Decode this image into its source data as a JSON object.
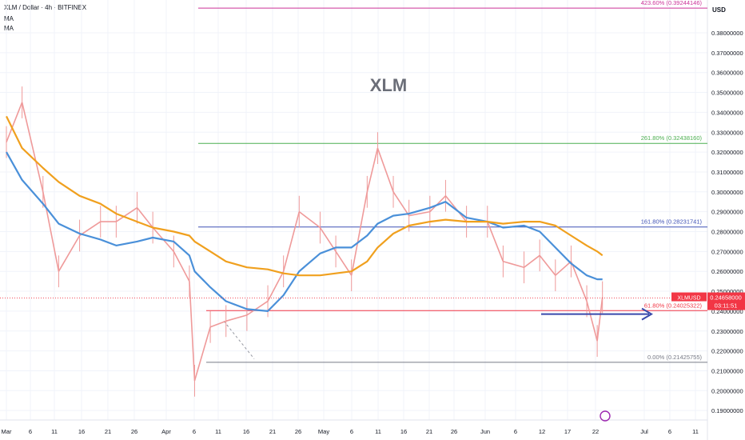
{
  "header": {
    "symbol_line": "XLM / Dollar · 4h · BITFINEX",
    "indicator_1": "MA",
    "indicator_2": "MA"
  },
  "price_axis": {
    "currency": "USD",
    "ticks": [
      "0.38000000",
      "0.37000000",
      "0.36000000",
      "0.35000000",
      "0.34000000",
      "0.33000000",
      "0.32000000",
      "0.31000000",
      "0.30000000",
      "0.29000000",
      "0.28000000",
      "0.27000000",
      "0.26000000",
      "0.25000000",
      "0.24000000",
      "0.23000000",
      "0.22000000",
      "0.21000000",
      "0.20000000",
      "0.19000000"
    ]
  },
  "time_axis": {
    "labels": [
      "Mar",
      "6",
      "11",
      "16",
      "21",
      "26",
      "Apr",
      "6",
      "11",
      "16",
      "21",
      "26",
      "May",
      "6",
      "11",
      "16",
      "21",
      "26",
      "Jun",
      "6",
      "12",
      "17",
      "22",
      "Jul",
      "6",
      "11"
    ]
  },
  "price_tag": {
    "symbol": "XLMUSD",
    "value": "0.24658000",
    "countdown": "03:11:51",
    "color": "#f23645"
  },
  "fib_levels": [
    {
      "label": "423.60% (0.39244146)",
      "value": 0.39244146,
      "color": "#cc3399"
    },
    {
      "label": "261.80% (0.32438160)",
      "value": 0.3243816,
      "color": "#4caf50"
    },
    {
      "label": "161.80% (0.28231741)",
      "value": 0.28231741,
      "color": "#3f51b5"
    },
    {
      "label": "61.80% (0.24025322)",
      "value": 0.24025322,
      "color": "#f23645"
    },
    {
      "label": "0.00% (0.21425755)",
      "value": 0.21425755,
      "color": "#787b86"
    }
  ],
  "annotation": "XLM",
  "chart_data": {
    "type": "line",
    "title": "XLM / Dollar · 4h · BITFINEX",
    "y_range": [
      0.185,
      0.402
    ],
    "grid": true,
    "colors": {
      "up": "#ef9a9a",
      "down": "#ef9a9a",
      "ma_fast": "#4a90d9",
      "ma_slow": "#f0a01e",
      "arrow": "#3949ab"
    },
    "x": [
      "2024-03-01",
      "2024-03-04",
      "2024-03-08",
      "2024-03-11",
      "2024-03-15",
      "2024-03-19",
      "2024-03-22",
      "2024-03-26",
      "2024-03-29",
      "2024-04-02",
      "2024-04-05",
      "2024-04-06",
      "2024-04-09",
      "2024-04-12",
      "2024-04-16",
      "2024-04-20",
      "2024-04-23",
      "2024-04-26",
      "2024-04-30",
      "2024-05-03",
      "2024-05-06",
      "2024-05-09",
      "2024-05-11",
      "2024-05-14",
      "2024-05-17",
      "2024-05-21",
      "2024-05-24",
      "2024-05-28",
      "2024-06-01",
      "2024-06-04",
      "2024-06-08",
      "2024-06-11",
      "2024-06-14",
      "2024-06-17",
      "2024-06-20",
      "2024-06-22",
      "2024-06-23"
    ],
    "series": [
      {
        "values": [
          0.325,
          0.345,
          0.3,
          0.26,
          0.278,
          0.285,
          0.285,
          0.292,
          0.282,
          0.27,
          0.255,
          0.205,
          0.232,
          0.235,
          0.238,
          0.245,
          0.26,
          0.29,
          0.282,
          0.27,
          0.258,
          0.3,
          0.322,
          0.3,
          0.288,
          0.29,
          0.298,
          0.285,
          0.285,
          0.265,
          0.262,
          0.268,
          0.258,
          0.265,
          0.245,
          0.225,
          0.247
        ]
      },
      {
        "values": [
          0.32,
          0.306,
          0.294,
          0.284,
          0.279,
          0.276,
          0.273,
          0.275,
          0.277,
          0.275,
          0.268,
          0.26,
          0.252,
          0.245,
          0.241,
          0.24,
          0.248,
          0.26,
          0.269,
          0.272,
          0.272,
          0.278,
          0.284,
          0.288,
          0.289,
          0.292,
          0.295,
          0.287,
          0.285,
          0.282,
          0.283,
          0.28,
          0.272,
          0.264,
          0.258,
          0.256,
          0.256
        ]
      },
      {
        "values": [
          0.338,
          0.322,
          0.312,
          0.305,
          0.298,
          0.294,
          0.289,
          0.285,
          0.282,
          0.28,
          0.278,
          0.275,
          0.27,
          0.265,
          0.262,
          0.261,
          0.259,
          0.258,
          0.258,
          0.259,
          0.26,
          0.265,
          0.272,
          0.279,
          0.283,
          0.285,
          0.286,
          0.285,
          0.285,
          0.284,
          0.285,
          0.285,
          0.283,
          0.278,
          0.273,
          0.27,
          0.268
        ]
      }
    ]
  }
}
